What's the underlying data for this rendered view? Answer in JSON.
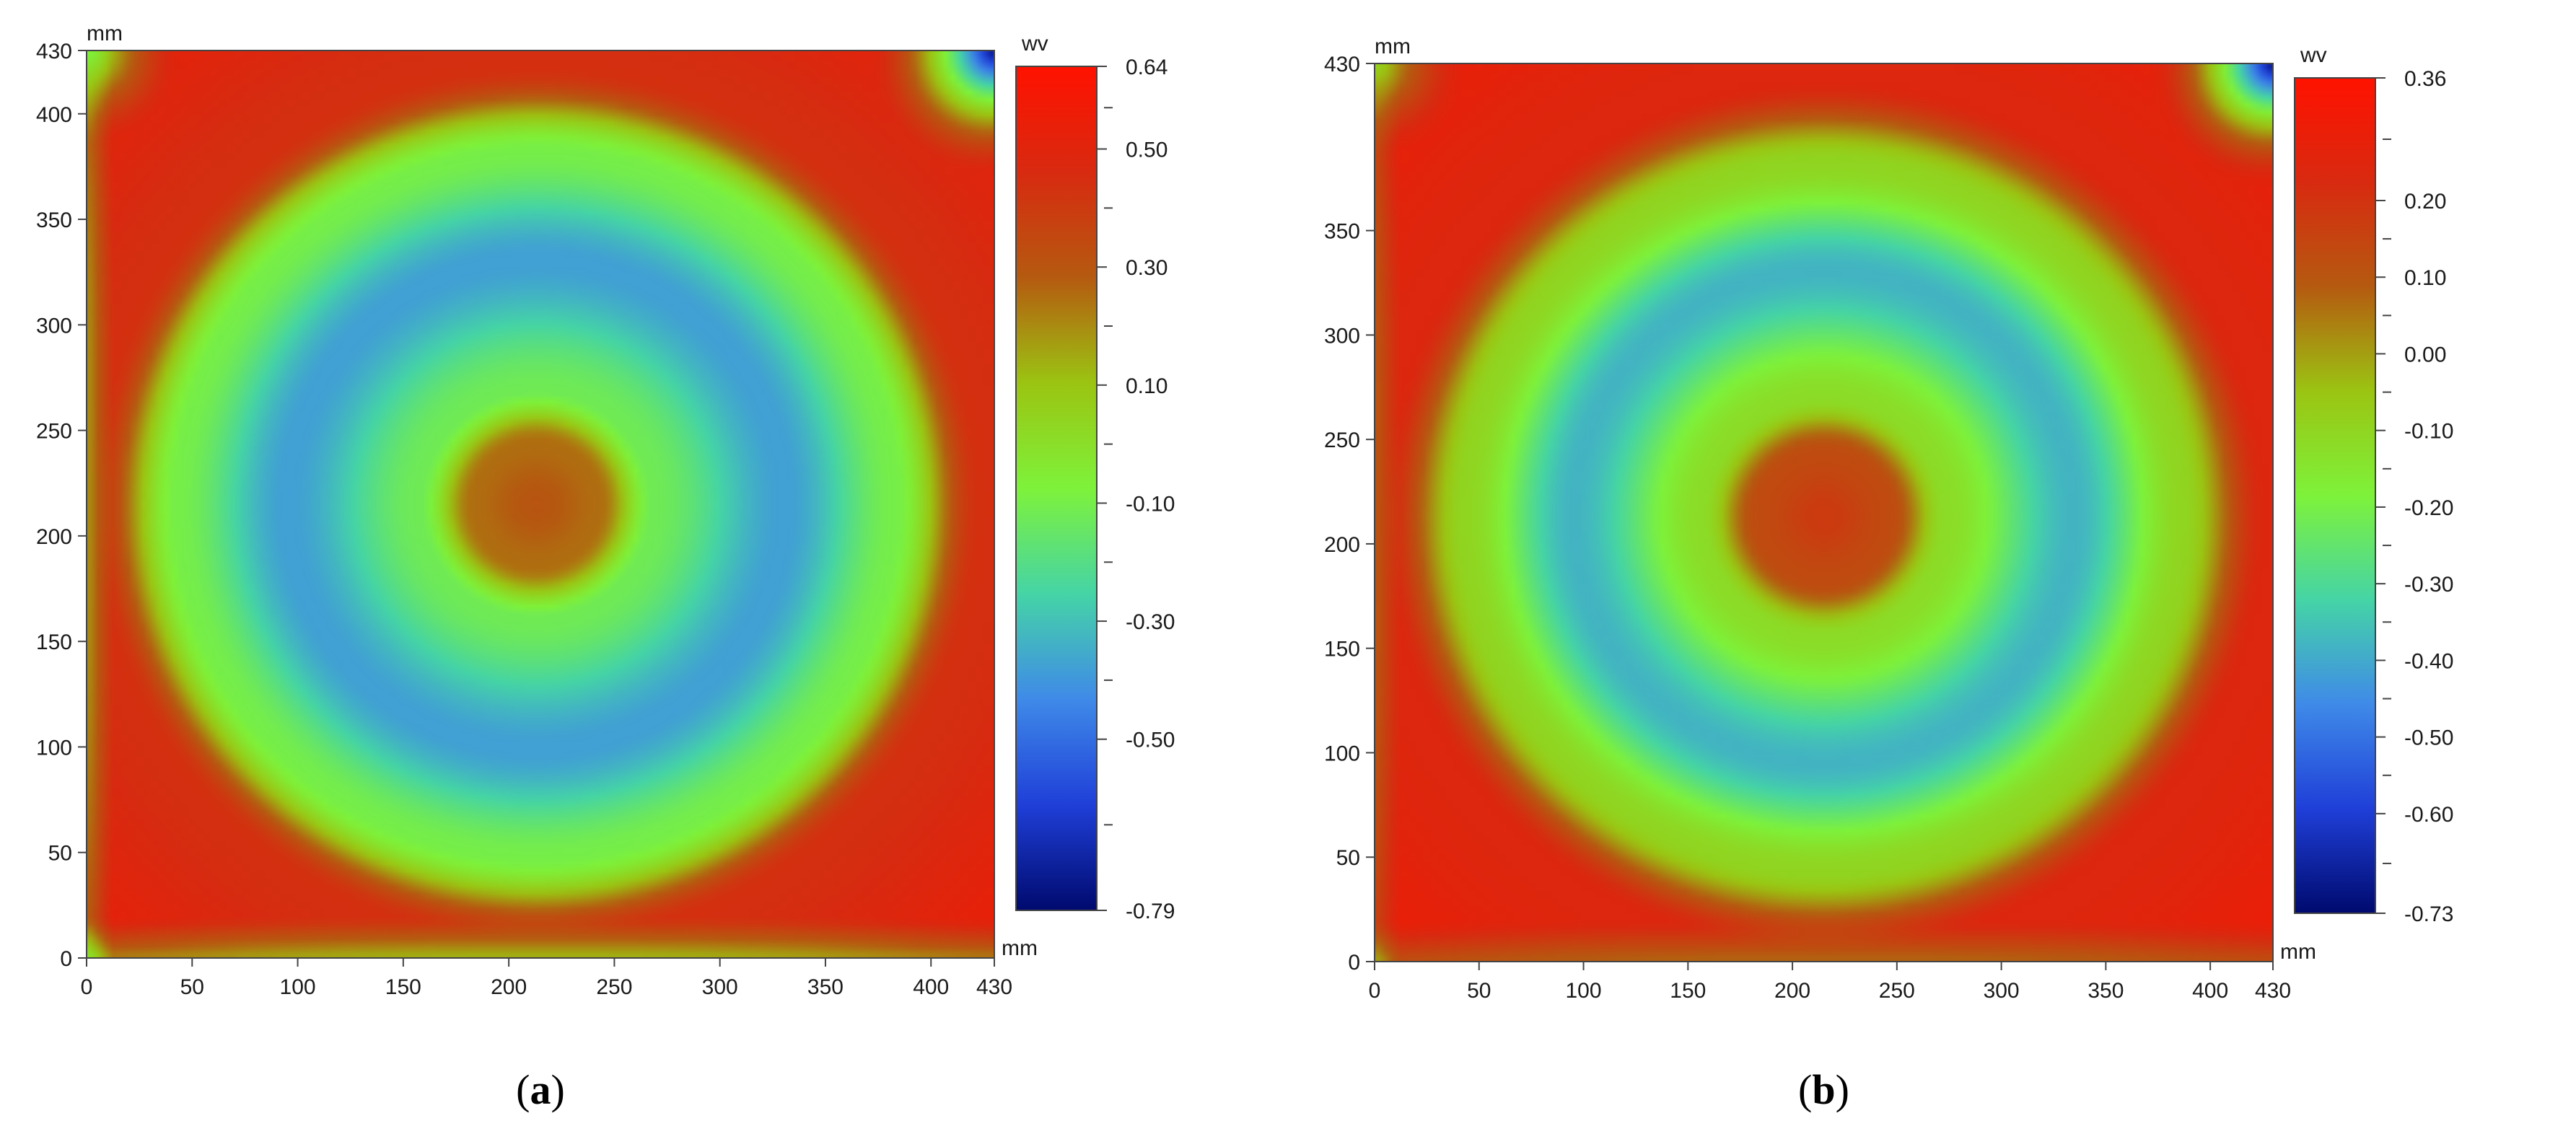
{
  "chart_data": [
    {
      "type": "heatmap",
      "panel_label": "(a)",
      "x_unit": "mm",
      "y_unit": "mm",
      "colorbar_unit": "wv",
      "xlim": [
        0,
        430
      ],
      "ylim": [
        0,
        430
      ],
      "x_ticks": [
        0,
        50,
        100,
        150,
        200,
        250,
        300,
        350,
        400,
        430
      ],
      "y_ticks": [
        0,
        50,
        100,
        150,
        200,
        250,
        300,
        350,
        400,
        430
      ],
      "colorbar_range": [
        -0.79,
        0.64
      ],
      "colorbar_ticks": [
        "0.64",
        "0.50",
        "0.30",
        "0.10",
        "-0.10",
        "-0.30",
        "-0.50",
        "-0.79"
      ],
      "colormap": [
        "#000a6e",
        "#1f3fd8",
        "#3f8ae8",
        "#45d4a6",
        "#7ef23a",
        "#9bc412",
        "#b55a10",
        "#d82a10",
        "#ff1200"
      ],
      "pattern": {
        "center": [
          213,
          215
        ],
        "center_peak": 0.3,
        "inner_ring_radius": 55,
        "blue_ring_radius": 118,
        "blue_ring_value": -0.38,
        "outer_green_radius": 170,
        "outer_value": 0.55,
        "corner_low": {
          "corner": "top-right",
          "value": -0.79
        }
      }
    },
    {
      "type": "heatmap",
      "panel_label": "(b)",
      "x_unit": "mm",
      "y_unit": "mm",
      "colorbar_unit": "wv",
      "xlim": [
        0,
        430
      ],
      "ylim": [
        0,
        430
      ],
      "x_ticks": [
        0,
        50,
        100,
        150,
        200,
        250,
        300,
        350,
        400,
        430
      ],
      "y_ticks": [
        0,
        50,
        100,
        150,
        200,
        250,
        300,
        350,
        430
      ],
      "colorbar_range": [
        -0.73,
        0.36
      ],
      "colorbar_ticks": [
        "0.36",
        "0.20",
        "0.10",
        "0.00",
        "-0.10",
        "-0.20",
        "-0.30",
        "-0.40",
        "-0.50",
        "-0.60",
        "-0.73"
      ],
      "colormap": [
        "#000a6e",
        "#1f3fd8",
        "#3f8ae8",
        "#45d4a6",
        "#7ef23a",
        "#9bc412",
        "#b55a10",
        "#d82a10",
        "#ff1200"
      ],
      "pattern": {
        "center": [
          215,
          213
        ],
        "center_peak": 0.18,
        "inner_ring_radius": 58,
        "blue_ring_radius": 120,
        "blue_ring_value": -0.38,
        "outer_green_radius": 172,
        "outer_value": 0.3,
        "corner_low": {
          "corner": "top-right",
          "value": -0.73
        }
      }
    }
  ]
}
